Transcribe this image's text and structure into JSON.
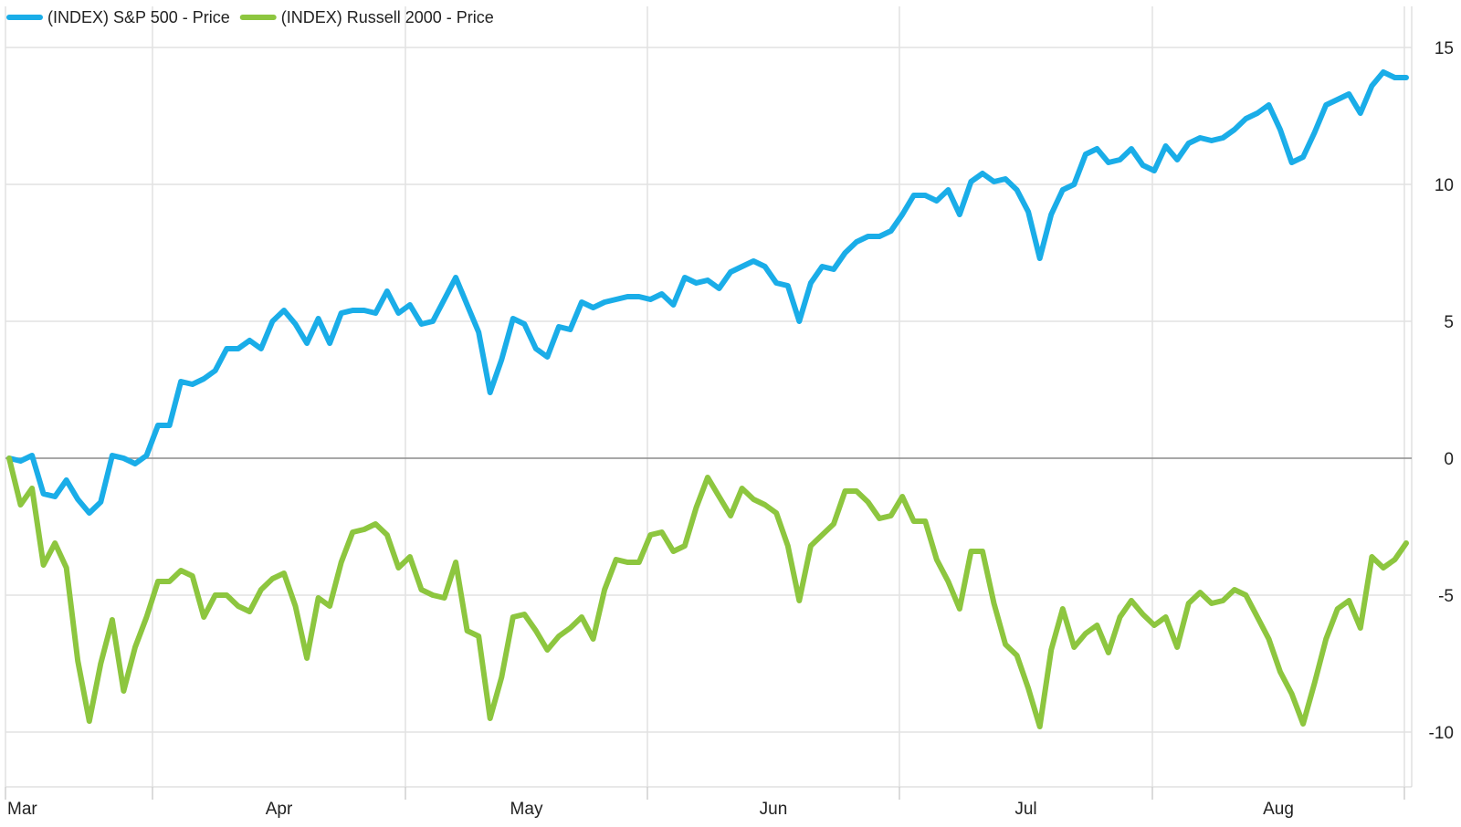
{
  "chart_data": {
    "type": "line",
    "title": "",
    "xlabel": "",
    "ylabel": "",
    "ylim": [
      -12,
      16.5
    ],
    "y_ticks": [
      15,
      10,
      5,
      0,
      -5,
      -10
    ],
    "x_tick_labels": [
      "Mar",
      "Apr",
      "May",
      "Jun",
      "Jul",
      "Aug"
    ],
    "grid": true,
    "legend_position": "top-left",
    "series": [
      {
        "name": "(INDEX) S&P 500 - Price",
        "color": "#1AADE8",
        "values": [
          0.0,
          -0.1,
          0.1,
          -1.3,
          -1.4,
          -0.8,
          -1.5,
          -2.0,
          -1.6,
          0.1,
          0.0,
          -0.2,
          0.1,
          1.2,
          1.2,
          2.8,
          2.7,
          2.9,
          3.2,
          4.0,
          4.0,
          4.3,
          4.0,
          5.0,
          5.4,
          4.9,
          4.2,
          5.1,
          4.2,
          5.3,
          5.4,
          5.4,
          5.3,
          6.1,
          5.3,
          5.6,
          4.9,
          5.0,
          5.8,
          6.6,
          5.6,
          4.6,
          2.4,
          3.6,
          5.1,
          4.9,
          4.0,
          3.7,
          4.8,
          4.7,
          5.7,
          5.5,
          5.7,
          5.8,
          5.9,
          5.9,
          5.8,
          6.0,
          5.6,
          6.6,
          6.4,
          6.5,
          6.2,
          6.8,
          7.0,
          7.2,
          7.0,
          6.4,
          6.3,
          5.0,
          6.4,
          7.0,
          6.9,
          7.5,
          7.9,
          8.1,
          8.1,
          8.3,
          8.9,
          9.6,
          9.6,
          9.4,
          9.8,
          8.9,
          10.1,
          10.4,
          10.1,
          10.2,
          9.8,
          9.0,
          7.3,
          8.9,
          9.8,
          10.0,
          11.1,
          11.3,
          10.8,
          10.9,
          11.3,
          10.7,
          10.5,
          11.4,
          10.9,
          11.5,
          11.7,
          11.6,
          11.7,
          12.0,
          12.4,
          12.6,
          12.9,
          12.0,
          10.8,
          11.0,
          11.9,
          12.9,
          13.1,
          13.3,
          12.6,
          13.6,
          14.1,
          13.9,
          13.9
        ]
      },
      {
        "name": "(INDEX) Russell 2000 - Price",
        "color": "#8DC63F",
        "values": [
          0.0,
          -1.7,
          -1.1,
          -3.9,
          -3.1,
          -4.0,
          -7.4,
          -9.6,
          -7.5,
          -5.9,
          -8.5,
          -6.9,
          -5.8,
          -4.5,
          -4.5,
          -4.1,
          -4.3,
          -5.8,
          -5.0,
          -5.0,
          -5.4,
          -5.6,
          -4.8,
          -4.4,
          -4.2,
          -5.4,
          -7.3,
          -5.1,
          -5.4,
          -3.8,
          -2.7,
          -2.6,
          -2.4,
          -2.8,
          -4.0,
          -3.6,
          -4.8,
          -5.0,
          -5.1,
          -3.8,
          -6.3,
          -6.5,
          -9.5,
          -8.0,
          -5.8,
          -5.7,
          -6.3,
          -7.0,
          -6.5,
          -6.2,
          -5.8,
          -6.6,
          -4.8,
          -3.7,
          -3.8,
          -3.8,
          -2.8,
          -2.7,
          -3.4,
          -3.2,
          -1.8,
          -0.7,
          -1.4,
          -2.1,
          -1.1,
          -1.5,
          -1.7,
          -2.0,
          -3.2,
          -5.2,
          -3.2,
          -2.8,
          -2.4,
          -1.2,
          -1.2,
          -1.6,
          -2.2,
          -2.1,
          -1.4,
          -2.3,
          -2.3,
          -3.7,
          -4.5,
          -5.5,
          -3.4,
          -3.4,
          -5.3,
          -6.8,
          -7.2,
          -8.4,
          -9.8,
          -7.0,
          -5.5,
          -6.9,
          -6.4,
          -6.1,
          -7.1,
          -5.8,
          -5.2,
          -5.7,
          -6.1,
          -5.8,
          -6.9,
          -5.3,
          -4.9,
          -5.3,
          -5.2,
          -4.8,
          -5.0,
          -5.8,
          -6.6,
          -7.8,
          -8.6,
          -9.7,
          -8.2,
          -6.6,
          -5.5,
          -5.2,
          -6.2,
          -3.6,
          -4.0,
          -3.7,
          -3.1
        ]
      }
    ]
  }
}
